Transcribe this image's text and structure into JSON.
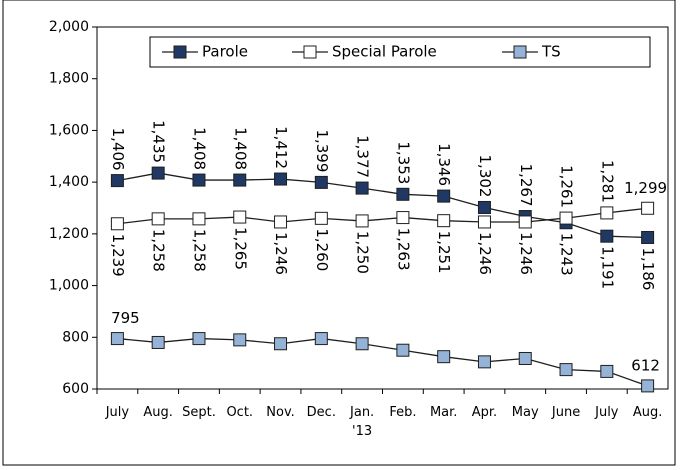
{
  "chart_data": {
    "type": "line",
    "categories": [
      "July",
      "Aug.",
      "Sept.",
      "Oct.",
      "Nov.",
      "Dec.",
      "Jan. '13",
      "Feb.",
      "Mar.",
      "Apr.",
      "May",
      "June",
      "July",
      "Aug."
    ],
    "series": [
      {
        "name": "Parole",
        "color": "#1f3864",
        "values": [
          1406,
          1435,
          1408,
          1408,
          1412,
          1399,
          1377,
          1353,
          1346,
          1302,
          1267,
          1243,
          1191,
          1186
        ],
        "value_labels": [
          "1,406",
          "1,435",
          "1,408",
          "1,408",
          "1,412",
          "1,399",
          "1,377",
          "1,353",
          "1,346",
          "1,302",
          "1,267",
          "1,243",
          "1,191",
          "1,186"
        ]
      },
      {
        "name": "Special Parole",
        "color": "#ffffff",
        "values": [
          1239,
          1258,
          1258,
          1265,
          1246,
          1260,
          1250,
          1263,
          1251,
          1246,
          1246,
          1261,
          1281,
          1299
        ],
        "value_labels": [
          "1,239",
          "1,258",
          "1,258",
          "1,265",
          "1,246",
          "1,260",
          "1,250",
          "1,263",
          "1,251",
          "1,246",
          "1,246",
          "1,261",
          "1,281",
          "1,299"
        ]
      },
      {
        "name": "TS",
        "color": "#95b3d7",
        "values": [
          795,
          780,
          795,
          790,
          775,
          795,
          775,
          750,
          725,
          705,
          718,
          675,
          668,
          612
        ],
        "value_labels": [
          "795",
          null,
          null,
          null,
          null,
          null,
          null,
          null,
          null,
          null,
          null,
          null,
          null,
          "612"
        ]
      }
    ],
    "ylim": [
      600,
      2000
    ],
    "yticks": [
      600,
      800,
      {
        "value": 1000,
        "label": "1,000"
      },
      {
        "value": 1200,
        "label": "1,200"
      },
      {
        "value": 1400,
        "label": "1,400"
      },
      {
        "value": 1600,
        "label": "1,600"
      },
      {
        "value": 1800,
        "label": "1,800"
      },
      {
        "value": 2000,
        "label": "2,000"
      }
    ],
    "legend": "top"
  }
}
